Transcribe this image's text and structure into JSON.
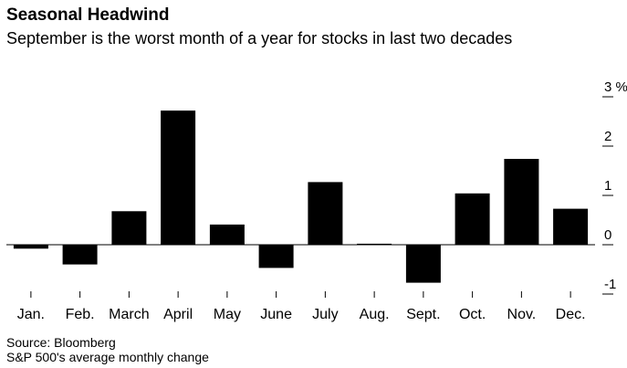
{
  "header": {
    "title": "Seasonal Headwind",
    "subtitle": "September is the worst month of a year for stocks in last two decades"
  },
  "footer": {
    "source": "Source: Bloomberg",
    "note": "S&P 500's average monthly change"
  },
  "chart_data": {
    "type": "bar",
    "title": "Seasonal Headwind",
    "subtitle": "September is the worst month of a year for stocks in last two decades",
    "categories": [
      "Jan.",
      "Feb.",
      "March",
      "April",
      "May",
      "June",
      "July",
      "Aug.",
      "Sept.",
      "Oct.",
      "Nov.",
      "Dec."
    ],
    "values": [
      -0.08,
      -0.4,
      0.68,
      2.72,
      0.41,
      -0.47,
      1.27,
      0.02,
      -0.77,
      1.04,
      1.74,
      0.73
    ],
    "yaxis": {
      "ticks": [
        -1,
        0,
        1,
        2,
        3
      ],
      "tick_labels": [
        "-1",
        "0",
        "1",
        "2",
        "3 %"
      ],
      "position": "right"
    },
    "ylim": [
      -1.15,
      3.35
    ],
    "grid": false,
    "bar_color": "#000000",
    "legend": "none"
  }
}
